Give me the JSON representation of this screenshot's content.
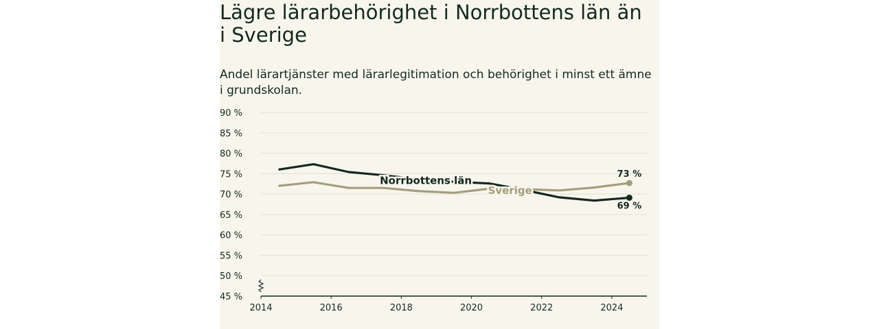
{
  "title": "Lägre lärarbehörighet i Norrbottens län än i Sverige",
  "subtitle": "Andel lärartjänster med lärarlegitimation och behörighet i minst ett ämne i grundskolan.",
  "colors": {
    "norrbotten": "#12291f",
    "sverige": "#a39e79",
    "background": "#f8f6ec"
  },
  "chart_data": {
    "type": "line",
    "title": "Lägre lärarbehörighet i Norrbottens län än i Sverige",
    "subtitle": "Andel lärartjänster med lärarlegitimation och behörighet i minst ett ämne i grundskolan.",
    "x": [
      "2014/15",
      "2015/16",
      "2016/17",
      "2017/18",
      "2018/19",
      "2019/20",
      "2020/21",
      "2021/22",
      "2022/23",
      "2023/24",
      "2024/25"
    ],
    "ylim": [
      45,
      90
    ],
    "yticks": [
      "45 %",
      "50 %",
      "55 %",
      "60 %",
      "65 %",
      "70 %",
      "75 %",
      "80 %",
      "85 %",
      "90 %"
    ],
    "xticks": [
      "2014",
      "2016",
      "2018",
      "2020",
      "2022",
      "2024"
    ],
    "axis_break": true,
    "series": [
      {
        "name": "Norrbottens län",
        "values": [
          76.0,
          77.3,
          75.4,
          74.6,
          73.6,
          73.0,
          72.6,
          71.0,
          69.2,
          68.4,
          69.1
        ],
        "end_label": "69 %"
      },
      {
        "name": "Sverige",
        "values": [
          72.0,
          72.9,
          71.5,
          71.5,
          70.7,
          70.3,
          71.3,
          71.2,
          70.9,
          71.6,
          72.7
        ],
        "end_label": "73 %"
      }
    ]
  }
}
